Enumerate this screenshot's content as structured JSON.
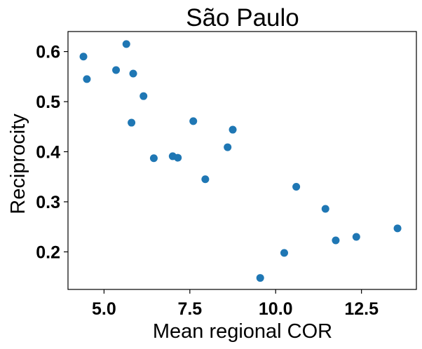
{
  "chart_data": {
    "type": "scatter",
    "title": "São Paulo",
    "xlabel": "Mean regional COR",
    "ylabel": "Reciprocity",
    "xlim": [
      3.95,
      14.1
    ],
    "ylim": [
      0.125,
      0.64
    ],
    "xticks": [
      5.0,
      7.5,
      10.0,
      12.5
    ],
    "xtick_labels": [
      "5.0",
      "7.5",
      "10.0",
      "12.5"
    ],
    "yticks": [
      0.2,
      0.3,
      0.4,
      0.5,
      0.6
    ],
    "ytick_labels": [
      "0.2",
      "0.3",
      "0.4",
      "0.5",
      "0.6"
    ],
    "grid": false,
    "color": "#1f77b4",
    "points": [
      {
        "x": 4.4,
        "y": 0.59
      },
      {
        "x": 4.5,
        "y": 0.545
      },
      {
        "x": 5.35,
        "y": 0.563
      },
      {
        "x": 5.65,
        "y": 0.615
      },
      {
        "x": 5.8,
        "y": 0.458
      },
      {
        "x": 5.85,
        "y": 0.556
      },
      {
        "x": 6.15,
        "y": 0.511
      },
      {
        "x": 6.45,
        "y": 0.387
      },
      {
        "x": 7.0,
        "y": 0.391
      },
      {
        "x": 7.15,
        "y": 0.388
      },
      {
        "x": 7.6,
        "y": 0.461
      },
      {
        "x": 7.95,
        "y": 0.345
      },
      {
        "x": 8.6,
        "y": 0.409
      },
      {
        "x": 8.75,
        "y": 0.444
      },
      {
        "x": 9.55,
        "y": 0.148
      },
      {
        "x": 10.25,
        "y": 0.198
      },
      {
        "x": 10.6,
        "y": 0.33
      },
      {
        "x": 11.45,
        "y": 0.286
      },
      {
        "x": 11.75,
        "y": 0.223
      },
      {
        "x": 12.35,
        "y": 0.23
      },
      {
        "x": 13.55,
        "y": 0.247
      }
    ]
  }
}
